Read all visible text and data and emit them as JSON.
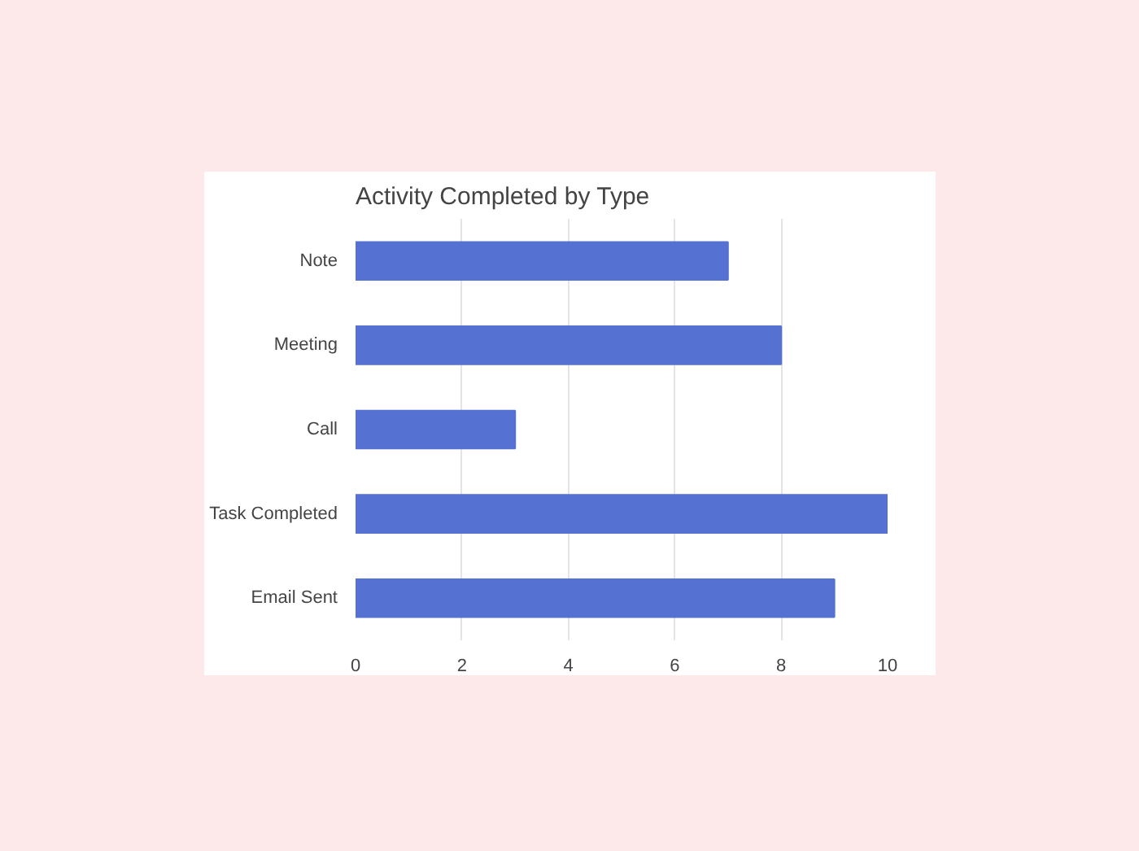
{
  "chart_data": {
    "type": "bar",
    "orientation": "horizontal",
    "title": "Activity Completed by Type",
    "categories": [
      "Note",
      "Meeting",
      "Call",
      "Task Completed",
      "Email Sent"
    ],
    "values": [
      7,
      8,
      3,
      10,
      9
    ],
    "color": "#5571d1",
    "xlim": [
      0,
      10
    ],
    "xticks": [
      0,
      2,
      4,
      6,
      8,
      10
    ],
    "grid": "x"
  }
}
